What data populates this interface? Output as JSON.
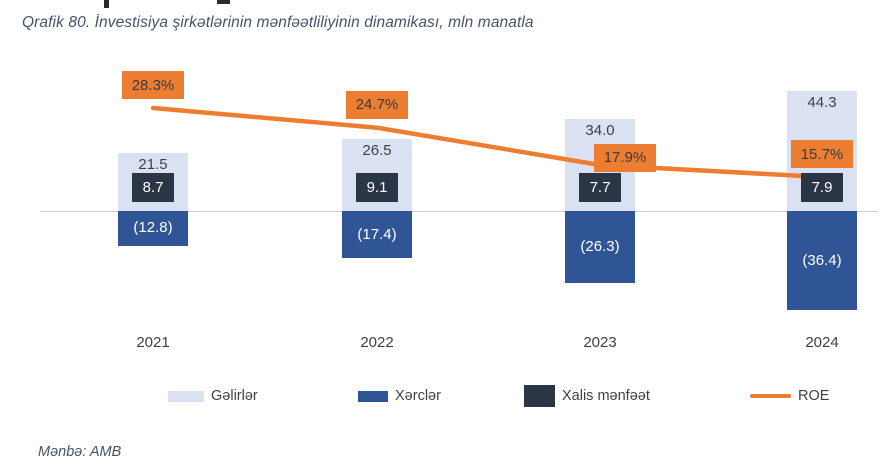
{
  "title": "Qrafik 80. İnvestisiya şirkətlərinin mənfəətliliyinin dinamikası, mln manatla",
  "source": "Mənbə: AMB",
  "chart_data": {
    "type": "bar",
    "subtype": "bar-line-combo",
    "title": "Qrafik 80. İnvestisiya şirkətlərinin mənfəətliliyinin dinamikası, mln manatla",
    "xlabel": "",
    "ylabel": "",
    "units": "mln manat",
    "categories": [
      "2021",
      "2022",
      "2023",
      "2024"
    ],
    "series": [
      {
        "name": "Gəlirlər",
        "type": "bar",
        "values": [
          21.5,
          26.5,
          34.0,
          44.3
        ],
        "color": "#D9E1F2"
      },
      {
        "name": "Xərclər",
        "type": "bar",
        "values": [
          -12.8,
          -17.4,
          -26.3,
          -36.4
        ],
        "color": "#2F5596"
      },
      {
        "name": "Xalis mənfəət",
        "type": "bar",
        "values": [
          8.7,
          9.1,
          7.7,
          7.9
        ],
        "color": "#2A3546"
      },
      {
        "name": "ROE",
        "type": "line",
        "values": [
          28.3,
          24.7,
          17.9,
          15.7
        ],
        "unit": "%",
        "color": "#ED7D31"
      }
    ],
    "legend_position": "bottom",
    "grid": false,
    "axis_line_color": "#CFCFCF",
    "label_colors": {
      "positive_labels": "#404040",
      "inside_bar_labels": "#FFFFFF",
      "roe_label_text": "#3B3B3B"
    }
  }
}
